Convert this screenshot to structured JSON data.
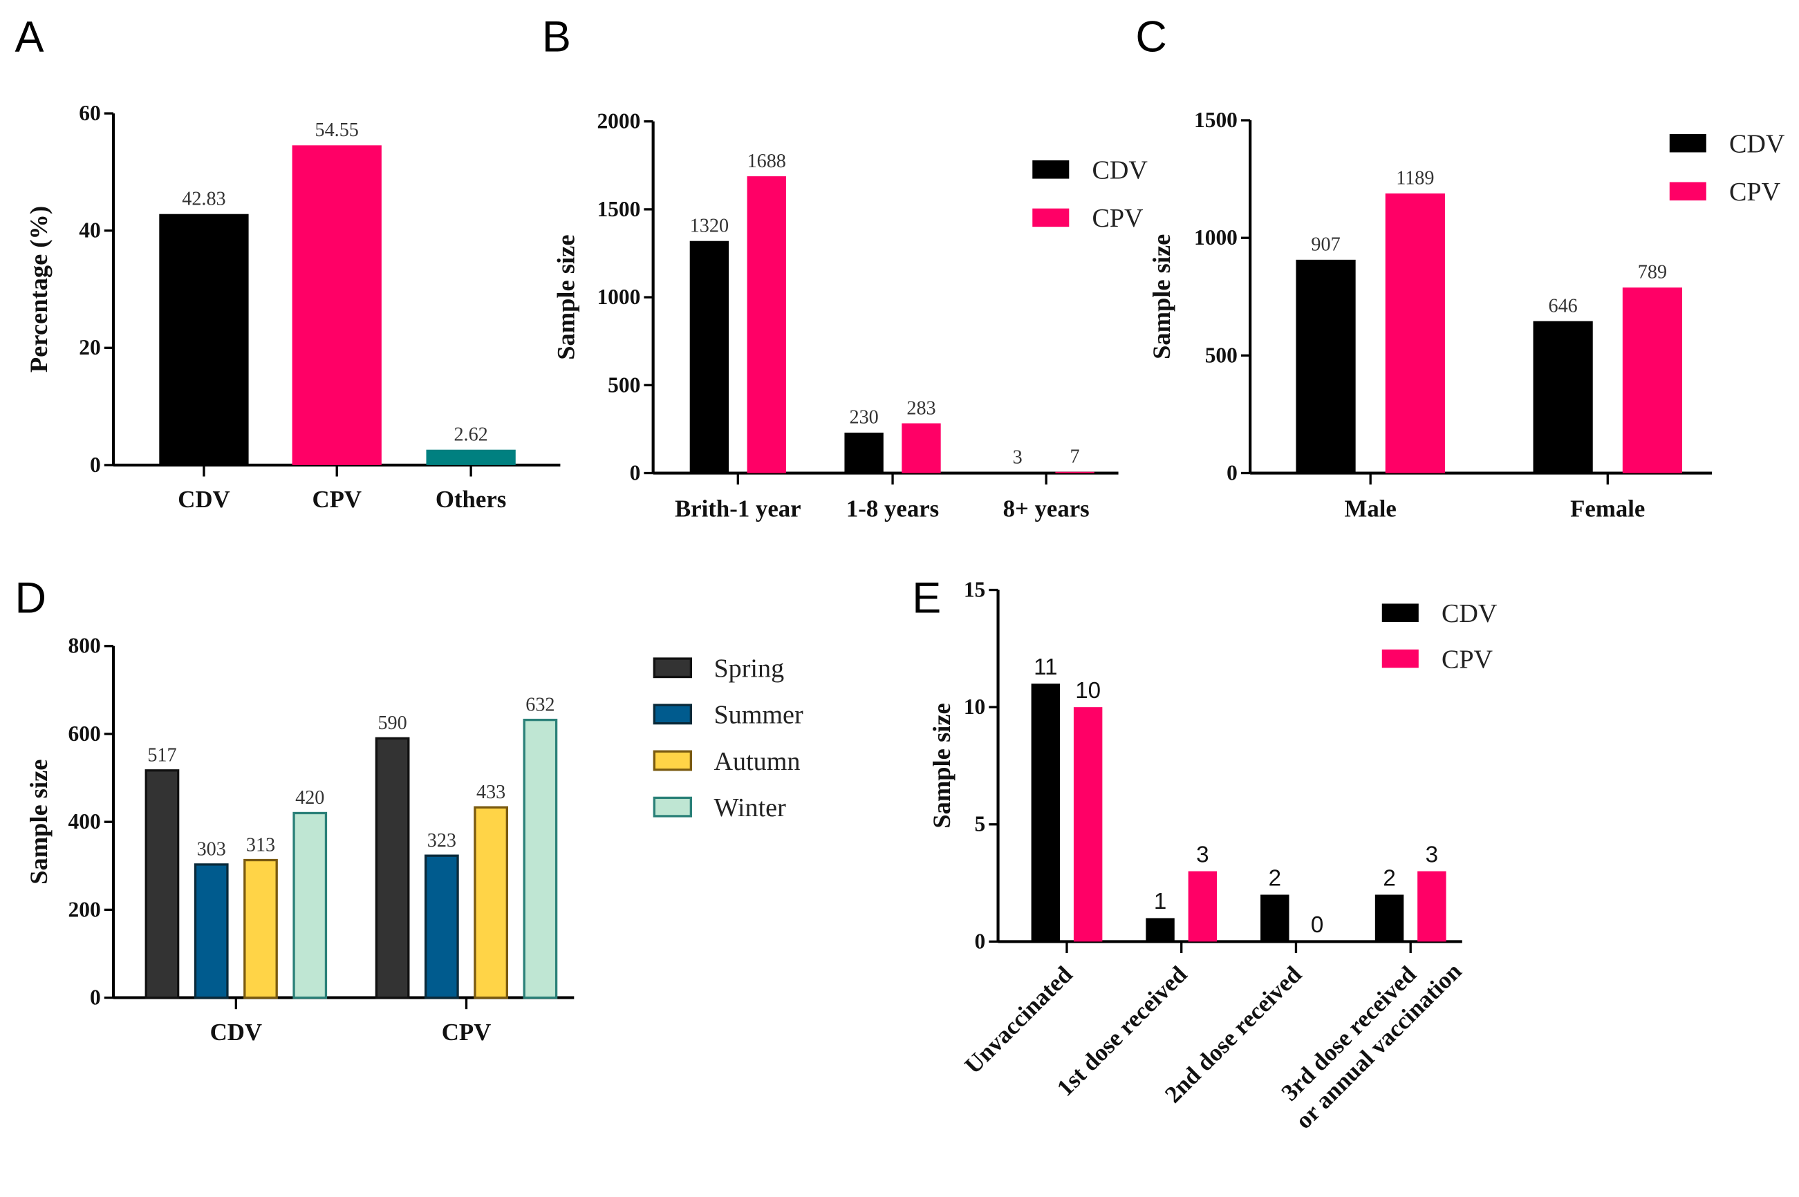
{
  "chart_data": [
    {
      "panel": "A",
      "type": "bar",
      "categories": [
        "CDV",
        "CPV",
        "Others"
      ],
      "series": [
        {
          "name": "",
          "values": [
            42.83,
            54.55,
            2.62
          ],
          "colors": [
            "#000000",
            "#ff0066",
            "#008080"
          ]
        }
      ],
      "value_labels": [
        "42.83",
        "54.55",
        "2.62"
      ],
      "ylabel": "Percentage (%)",
      "ylim": [
        0,
        60
      ],
      "yticks": [
        0,
        20,
        40,
        60
      ],
      "legend": null
    },
    {
      "panel": "B",
      "type": "bar",
      "categories": [
        "Brith-1 year",
        "1-8 years",
        "8+ years"
      ],
      "series": [
        {
          "name": "CDV",
          "values": [
            1320,
            230,
            3
          ],
          "color": "#000000"
        },
        {
          "name": "CPV",
          "values": [
            1688,
            283,
            7
          ],
          "color": "#ff0066"
        }
      ],
      "ylabel": "Sample size",
      "ylim": [
        0,
        2000
      ],
      "yticks": [
        0,
        500,
        1000,
        1500,
        2000
      ],
      "legend": "top-right"
    },
    {
      "panel": "C",
      "type": "bar",
      "categories": [
        "Male",
        "Female"
      ],
      "series": [
        {
          "name": "CDV",
          "values": [
            907,
            646
          ],
          "color": "#000000"
        },
        {
          "name": "CPV",
          "values": [
            1189,
            789
          ],
          "color": "#ff0066"
        }
      ],
      "ylabel": "Sample size",
      "ylim": [
        0,
        1500
      ],
      "yticks": [
        0,
        500,
        1000,
        1500
      ],
      "legend": "top-right"
    },
    {
      "panel": "D",
      "type": "bar",
      "categories": [
        "CDV",
        "CPV"
      ],
      "series": [
        {
          "name": "Spring",
          "values": [
            517,
            590
          ],
          "color": "#333333",
          "stroke": "#111111"
        },
        {
          "name": "Summer",
          "values": [
            303,
            323
          ],
          "color": "#005b8e",
          "stroke": "#0a2a3a"
        },
        {
          "name": "Autumn",
          "values": [
            313,
            433
          ],
          "color": "#ffd447",
          "stroke": "#7a5a10"
        },
        {
          "name": "Winter",
          "values": [
            420,
            632
          ],
          "color": "#bfe6d3",
          "stroke": "#2a8078"
        }
      ],
      "ylabel": "Sample size",
      "ylim": [
        0,
        800
      ],
      "yticks": [
        0,
        200,
        400,
        600,
        800
      ],
      "legend": "right"
    },
    {
      "panel": "E",
      "type": "bar",
      "categories": [
        "Unvaccinated",
        "1st dose received",
        "2nd dose received",
        "3rd dose received|or annual vaccination"
      ],
      "series": [
        {
          "name": "CDV",
          "values": [
            11,
            1,
            2,
            2
          ],
          "color": "#000000"
        },
        {
          "name": "CPV",
          "values": [
            10,
            3,
            0,
            3
          ],
          "color": "#ff0066"
        }
      ],
      "ylabel": "Sample size",
      "ylim": [
        0,
        15
      ],
      "yticks": [
        0,
        5,
        10,
        15
      ],
      "legend": "top-right"
    }
  ]
}
